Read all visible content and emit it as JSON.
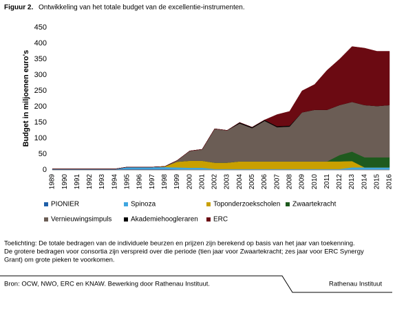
{
  "chart_data": {
    "type": "stacked-area",
    "label": "Figuur 2.",
    "title": "Ontwikkeling van het totale budget van de excellentie-instrumenten.",
    "y_label": "Budget in miljoenen euro's",
    "categories": [
      "1989",
      "1990",
      "1991",
      "1992",
      "1993",
      "1994",
      "1995",
      "1996",
      "1997",
      "1998",
      "1999",
      "2000",
      "2001",
      "2002",
      "2003",
      "2004",
      "2005",
      "2006",
      "2007",
      "2008",
      "2009",
      "2010",
      "2011",
      "2012",
      "2013",
      "2014",
      "2015",
      "2016"
    ],
    "series": [
      {
        "name": "PIONIER",
        "color": "#1f5fa8",
        "values": [
          3,
          3,
          3,
          3,
          3,
          3,
          3,
          3,
          3,
          3,
          2,
          1,
          1,
          0,
          0,
          0,
          0,
          0,
          0,
          0,
          0,
          0,
          0,
          0,
          0,
          0,
          0,
          0
        ]
      },
      {
        "name": "Spinoza",
        "color": "#3fa6e0",
        "values": [
          0,
          0,
          0,
          0,
          0,
          0,
          6,
          6,
          6,
          6,
          6,
          6,
          6,
          3,
          3,
          3,
          3,
          3,
          3,
          3,
          3,
          3,
          3,
          3,
          8,
          8,
          8,
          8
        ]
      },
      {
        "name": "Toponderzoekscholen",
        "color": "#c9a000",
        "values": [
          0,
          0,
          0,
          0,
          0,
          0,
          0,
          0,
          0,
          2,
          18,
          22,
          22,
          20,
          20,
          24,
          24,
          24,
          24,
          24,
          24,
          24,
          24,
          24,
          20,
          0,
          0,
          0
        ]
      },
      {
        "name": "Zwaartekracht",
        "color": "#1e5a1e",
        "values": [
          0,
          0,
          0,
          0,
          0,
          0,
          0,
          0,
          0,
          0,
          0,
          0,
          0,
          0,
          0,
          0,
          0,
          0,
          0,
          0,
          0,
          0,
          0,
          20,
          30,
          32,
          32,
          32
        ]
      },
      {
        "name": "Vernieuwingsimpuls",
        "color": "#6b5d55",
        "values": [
          0,
          0,
          0,
          0,
          0,
          0,
          0,
          0,
          0,
          0,
          4,
          31,
          36,
          107,
          102,
          120,
          105,
          128,
          108,
          110,
          155,
          163,
          163,
          158,
          157,
          165,
          162,
          165
        ]
      },
      {
        "name": "Akademiehoogleraren",
        "color": "#000000",
        "values": [
          0,
          0,
          0,
          0,
          0,
          0,
          0,
          0,
          0,
          0,
          0,
          0,
          0,
          0,
          0,
          3,
          3,
          3,
          3,
          3,
          0,
          0,
          0,
          0,
          0,
          0,
          0,
          0
        ]
      },
      {
        "name": "ERC",
        "color": "#6b0a12",
        "values": [
          0,
          0,
          0,
          0,
          0,
          0,
          0,
          0,
          0,
          0,
          0,
          0,
          0,
          0,
          0,
          0,
          0,
          0,
          37,
          45,
          68,
          80,
          125,
          145,
          175,
          180,
          173,
          170
        ]
      }
    ],
    "ylim": [
      0,
      450
    ],
    "yticks": [
      0,
      50,
      100,
      150,
      200,
      250,
      300,
      350,
      400,
      450
    ],
    "grid": false
  },
  "notes": [
    "Toelichting: De totale bedragen van de individuele beurzen en prijzen zijn berekend op basis van het jaar van toekenning.",
    "De grotere bedragen voor consortia zijn verspreid over die periode (tien jaar voor Zwaartekracht; zes jaar voor ERC Synergy",
    "Grant) om grote pieken te voorkomen."
  ],
  "source": "Bron: OCW, NWO, ERC en KNAW. Bewerking door Rathenau Instituut.",
  "publisher": "Rathenau Instituut"
}
